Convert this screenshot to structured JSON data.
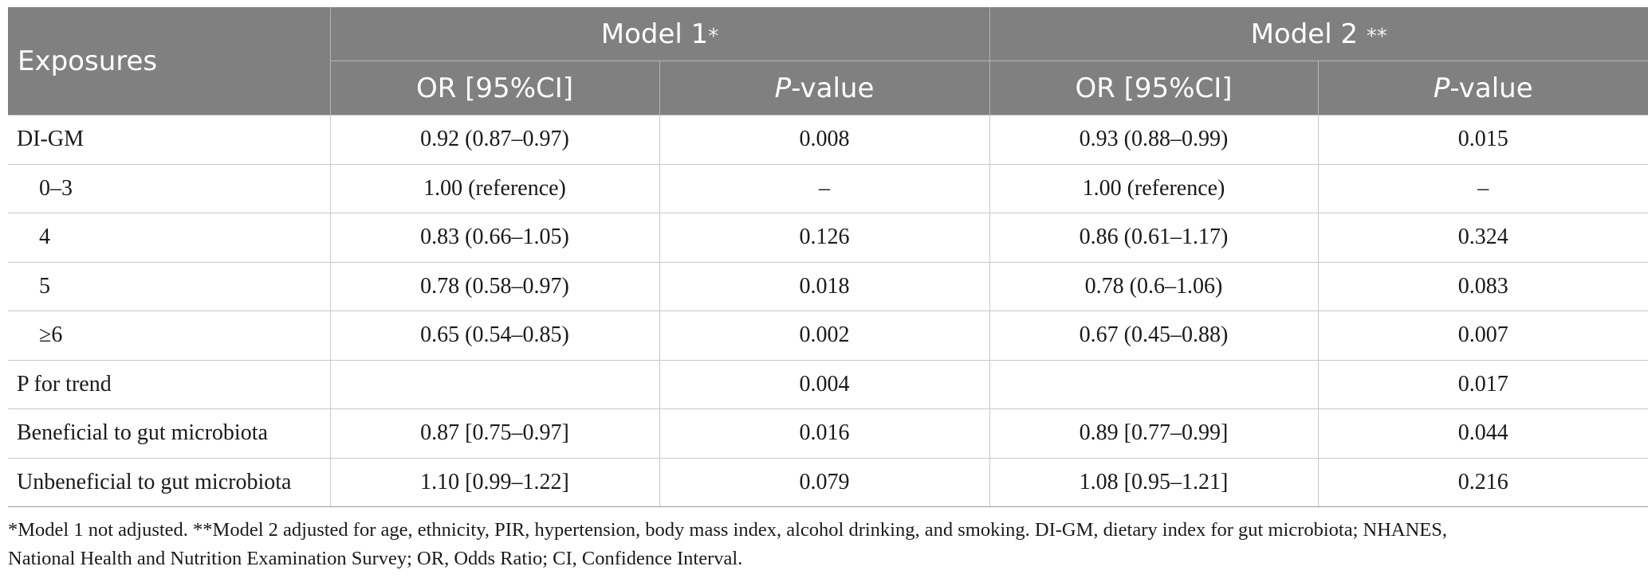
{
  "header": {
    "exposures": "Exposures",
    "model1": "Model 1",
    "model1_mark": "*",
    "model2": "Model 2",
    "model2_mark": "**",
    "or_ci": "OR [95%CI]",
    "p_italic": "P",
    "p_suffix": "-value"
  },
  "rows": [
    {
      "label": "DI-GM",
      "indent": false,
      "m1_or": "0.92 (0.87–0.97)",
      "m1_p": "0.008",
      "m2_or": "0.93 (0.88–0.99)",
      "m2_p": "0.015"
    },
    {
      "label": "0–3",
      "indent": true,
      "m1_or": "1.00 (reference)",
      "m1_p": "–",
      "m2_or": "1.00 (reference)",
      "m2_p": "–"
    },
    {
      "label": "4",
      "indent": true,
      "m1_or": "0.83 (0.66–1.05)",
      "m1_p": "0.126",
      "m2_or": "0.86 (0.61–1.17)",
      "m2_p": "0.324"
    },
    {
      "label": "5",
      "indent": true,
      "m1_or": "0.78 (0.58–0.97)",
      "m1_p": "0.018",
      "m2_or": "0.78 (0.6–1.06)",
      "m2_p": "0.083"
    },
    {
      "label": "≥6",
      "indent": true,
      "m1_or": "0.65 (0.54–0.85)",
      "m1_p": "0.002",
      "m2_or": "0.67 (0.45–0.88)",
      "m2_p": "0.007"
    },
    {
      "label": "P for trend",
      "indent": false,
      "m1_or": "",
      "m1_p": "0.004",
      "m2_or": "",
      "m2_p": "0.017"
    },
    {
      "label": "Beneficial to gut microbiota",
      "indent": false,
      "m1_or": "0.87 [0.75–0.97]",
      "m1_p": "0.016",
      "m2_or": "0.89 [0.77–0.99]",
      "m2_p": "0.044"
    },
    {
      "label": "Unbeneficial to gut microbiota",
      "indent": false,
      "m1_or": "1.10 [0.99–1.22]",
      "m1_p": "0.079",
      "m2_or": "1.08 [0.95–1.21]",
      "m2_p": "0.216"
    }
  ],
  "footnote": {
    "line1": "*Model 1 not adjusted. **Model 2 adjusted for age, ethnicity, PIR, hypertension, body mass index, alcohol drinking, and smoking. DI-GM, dietary index for gut microbiota; NHANES,",
    "line2": "National Health and Nutrition Examination Survey; OR, Odds Ratio; CI, Confidence Interval."
  },
  "colors": {
    "header_bg": "#808080",
    "header_text": "#ffffff",
    "body_text": "#1a1a1a",
    "grid": "#c8c8c8"
  }
}
